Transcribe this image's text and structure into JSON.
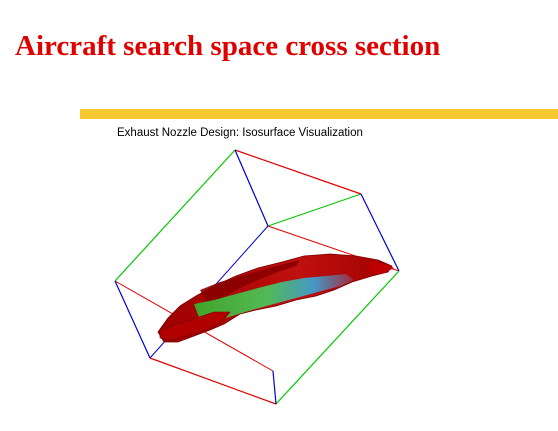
{
  "slide": {
    "title": "Aircraft search space cross section",
    "accent_color": "#f8c830",
    "title_color": "#e00000"
  },
  "figure": {
    "caption": "Exhaust Nozzle Design: Isosurface Visualization",
    "bounding_box_edge_colors": {
      "x_axis": "#e00000",
      "y_axis": "#00c800",
      "z_axis": "#0000d0"
    },
    "isosurface_colors": [
      "#9c0000",
      "#c00000",
      "#38d838",
      "#30b0e8"
    ]
  }
}
